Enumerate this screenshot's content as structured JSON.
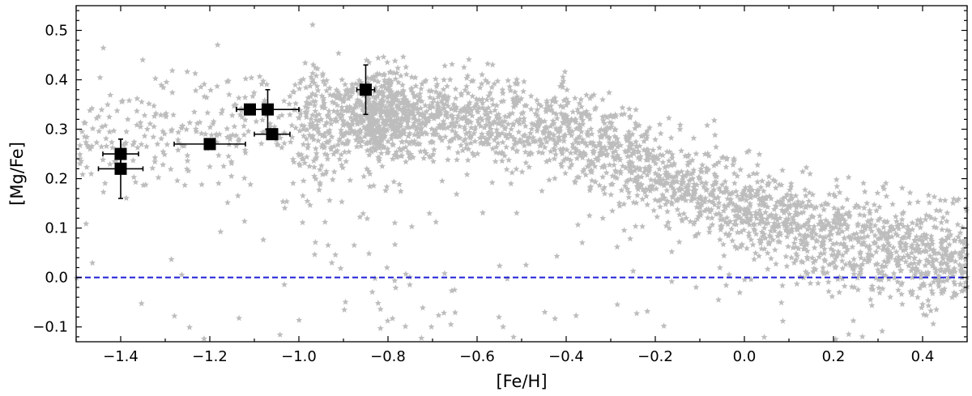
{
  "chart_data": {
    "type": "scatter",
    "title": "",
    "xlabel": "[Fe/H]",
    "ylabel": "[Mg/Fe]",
    "xlim": [
      -1.5,
      0.5
    ],
    "ylim": [
      -0.13,
      0.55
    ],
    "x_ticks": [
      -1.4,
      -1.2,
      -1.0,
      -0.8,
      -0.6,
      -0.4,
      -0.2,
      0.0,
      0.2,
      0.4
    ],
    "x_tick_labels": [
      "−1.4",
      "−1.2",
      "−1.0",
      "−0.8",
      "−0.6",
      "−0.4",
      "−0.2",
      "0.0",
      "0.2",
      "0.4"
    ],
    "y_ticks": [
      -0.1,
      0.0,
      0.1,
      0.2,
      0.3,
      0.4,
      0.5
    ],
    "y_tick_labels": [
      "−0.1",
      "0.0",
      "0.1",
      "0.2",
      "0.3",
      "0.4",
      "0.5"
    ],
    "grid": false,
    "reference_line": {
      "y": 0.0,
      "style": "dashed",
      "color": "#1f1fd6"
    },
    "background_sample": {
      "marker": "star",
      "color": "#bdbdbd",
      "trend": [
        {
          "x": -1.45,
          "y": 0.29
        },
        {
          "x": -1.2,
          "y": 0.29
        },
        {
          "x": -1.0,
          "y": 0.31
        },
        {
          "x": -0.8,
          "y": 0.33
        },
        {
          "x": -0.6,
          "y": 0.32
        },
        {
          "x": -0.4,
          "y": 0.29
        },
        {
          "x": -0.2,
          "y": 0.22
        },
        {
          "x": 0.0,
          "y": 0.14
        },
        {
          "x": 0.2,
          "y": 0.08
        },
        {
          "x": 0.4,
          "y": 0.05
        },
        {
          "x": 0.5,
          "y": 0.04
        }
      ]
    },
    "series": [
      {
        "marker": "square",
        "color": "#000000",
        "points": [
          {
            "x": -1.4,
            "y": 0.25,
            "xerr": 0.04,
            "yerr": 0.03
          },
          {
            "x": -1.4,
            "y": 0.22,
            "xerr": 0.05,
            "yerr": 0.06
          },
          {
            "x": -1.2,
            "y": 0.27,
            "xerr": 0.08,
            "yerr": 0.0
          },
          {
            "x": -1.11,
            "y": 0.34,
            "xerr": 0.03,
            "yerr": 0.0
          },
          {
            "x": -1.07,
            "y": 0.34,
            "xerr": 0.07,
            "yerr": 0.04
          },
          {
            "x": -1.06,
            "y": 0.29,
            "xerr": 0.04,
            "yerr": 0.0
          },
          {
            "x": -0.85,
            "y": 0.38,
            "xerr": 0.02,
            "yerr": 0.05
          }
        ]
      }
    ]
  }
}
